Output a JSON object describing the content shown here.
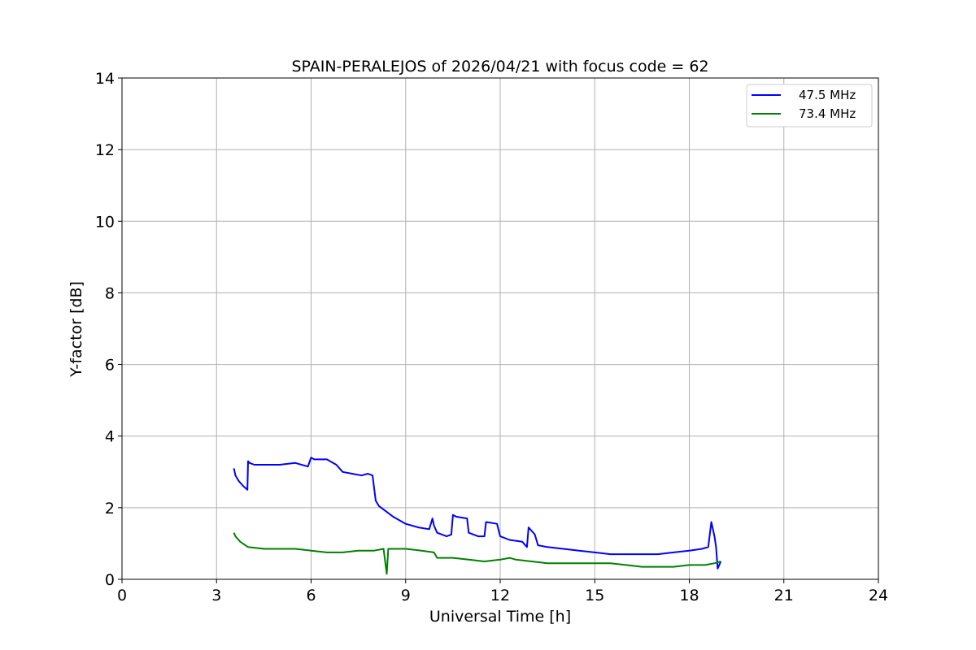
{
  "chart_data": {
    "type": "line",
    "title": "SPAIN-PERALEJOS of 2026/04/21 with focus code = 62",
    "xlabel": "Universal Time [h]",
    "ylabel": "Y-factor [dB]",
    "xlim": [
      0,
      24
    ],
    "ylim": [
      0,
      14
    ],
    "xticks": [
      "0",
      "3",
      "6",
      "9",
      "12",
      "15",
      "18",
      "21",
      "24"
    ],
    "yticks": [
      "0",
      "2",
      "4",
      "6",
      "8",
      "10",
      "12",
      "14"
    ],
    "grid": true,
    "legend_position": "top-right",
    "series": [
      {
        "name": "47.5 MHz",
        "color": "#0000ff",
        "x": [
          3.55,
          3.6,
          3.7,
          3.85,
          3.98,
          4.0,
          4.05,
          4.2,
          4.5,
          5.0,
          5.5,
          5.9,
          6.0,
          6.1,
          6.5,
          6.8,
          7.0,
          7.3,
          7.6,
          7.8,
          7.95,
          8.05,
          8.15,
          8.3,
          8.6,
          9.0,
          9.4,
          9.75,
          9.85,
          9.9,
          10.0,
          10.3,
          10.45,
          10.5,
          10.6,
          10.95,
          11.0,
          11.3,
          11.5,
          11.55,
          11.9,
          12.0,
          12.3,
          12.7,
          12.85,
          12.9,
          13.1,
          13.2,
          13.5,
          14.0,
          14.5,
          15.0,
          15.5,
          16.0,
          16.5,
          17.0,
          17.5,
          18.0,
          18.4,
          18.6,
          18.7,
          18.8,
          18.85,
          18.9,
          18.95,
          19.0
        ],
        "values": [
          3.1,
          2.9,
          2.75,
          2.6,
          2.5,
          3.3,
          3.25,
          3.2,
          3.2,
          3.2,
          3.25,
          3.15,
          3.4,
          3.35,
          3.35,
          3.2,
          3.0,
          2.95,
          2.9,
          2.95,
          2.9,
          2.2,
          2.05,
          1.95,
          1.75,
          1.55,
          1.45,
          1.4,
          1.7,
          1.5,
          1.3,
          1.2,
          1.25,
          1.8,
          1.75,
          1.7,
          1.3,
          1.2,
          1.2,
          1.6,
          1.55,
          1.2,
          1.1,
          1.05,
          0.9,
          1.45,
          1.25,
          0.95,
          0.9,
          0.85,
          0.8,
          0.75,
          0.7,
          0.7,
          0.7,
          0.7,
          0.75,
          0.8,
          0.85,
          0.9,
          1.6,
          1.2,
          0.9,
          0.3,
          0.4,
          0.5
        ]
      },
      {
        "name": "73.4 MHz",
        "color": "#008000",
        "x": [
          3.55,
          3.6,
          3.75,
          4.0,
          4.5,
          5.0,
          5.5,
          6.0,
          6.5,
          7.0,
          7.5,
          8.0,
          8.3,
          8.4,
          8.45,
          8.5,
          9.0,
          9.5,
          9.9,
          10.0,
          10.5,
          11.0,
          11.5,
          12.0,
          12.3,
          12.5,
          13.0,
          13.5,
          14.0,
          14.5,
          15.0,
          15.5,
          16.0,
          16.5,
          17.0,
          17.5,
          18.0,
          18.5,
          18.8,
          19.0
        ],
        "values": [
          1.3,
          1.2,
          1.05,
          0.9,
          0.85,
          0.85,
          0.85,
          0.8,
          0.75,
          0.75,
          0.8,
          0.8,
          0.85,
          0.15,
          0.85,
          0.85,
          0.85,
          0.8,
          0.75,
          0.6,
          0.6,
          0.55,
          0.5,
          0.55,
          0.6,
          0.55,
          0.5,
          0.45,
          0.45,
          0.45,
          0.45,
          0.45,
          0.4,
          0.35,
          0.35,
          0.35,
          0.4,
          0.4,
          0.45,
          0.5
        ]
      }
    ]
  }
}
